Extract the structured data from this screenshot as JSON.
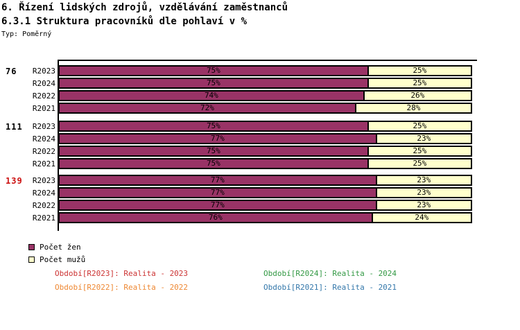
{
  "header": {
    "title_line1": "6. Řízení lidských zdrojů, vzdělávání zaměstnanců",
    "title_line2": "6.3.1 Struktura pracovníků dle pohlaví v %",
    "type_label": "Typ: Poměrný"
  },
  "chart_data": {
    "type": "bar",
    "orientation": "horizontal",
    "stacked": true,
    "value_unit": "%",
    "axis_range": [
      0,
      100
    ],
    "series": [
      {
        "name": "Počet žen",
        "color": "#993366"
      },
      {
        "name": "Počet mužů",
        "color": "#ffffcc"
      }
    ],
    "groups": [
      {
        "label": "76",
        "label_color": "#000000",
        "rows": [
          {
            "period": "R2023",
            "zeny_pct": 75,
            "muzi_pct": 25
          },
          {
            "period": "R2024",
            "zeny_pct": 75,
            "muzi_pct": 25
          },
          {
            "period": "R2022",
            "zeny_pct": 74,
            "muzi_pct": 26
          },
          {
            "period": "R2021",
            "zeny_pct": 72,
            "muzi_pct": 28
          }
        ]
      },
      {
        "label": "111",
        "label_color": "#000000",
        "rows": [
          {
            "period": "R2023",
            "zeny_pct": 75,
            "muzi_pct": 25
          },
          {
            "period": "R2024",
            "zeny_pct": 77,
            "muzi_pct": 23
          },
          {
            "period": "R2022",
            "zeny_pct": 75,
            "muzi_pct": 25
          },
          {
            "period": "R2021",
            "zeny_pct": 75,
            "muzi_pct": 25
          }
        ]
      },
      {
        "label": "139",
        "label_color": "#cc1111",
        "rows": [
          {
            "period": "R2023",
            "zeny_pct": 77,
            "muzi_pct": 23
          },
          {
            "period": "R2024",
            "zeny_pct": 77,
            "muzi_pct": 23
          },
          {
            "period": "R2022",
            "zeny_pct": 77,
            "muzi_pct": 23
          },
          {
            "period": "R2021",
            "zeny_pct": 76,
            "muzi_pct": 24
          }
        ]
      }
    ]
  },
  "footnotes": [
    {
      "text": "Období[R2023]: Realita - 2023",
      "color": "#cc3333"
    },
    {
      "text": "Období[R2024]: Realita - 2024",
      "color": "#339944"
    },
    {
      "text": "Období[R2022]: Realita - 2022",
      "color": "#ee8833"
    },
    {
      "text": "Období[R2021]: Realita - 2021",
      "color": "#3377aa"
    }
  ]
}
